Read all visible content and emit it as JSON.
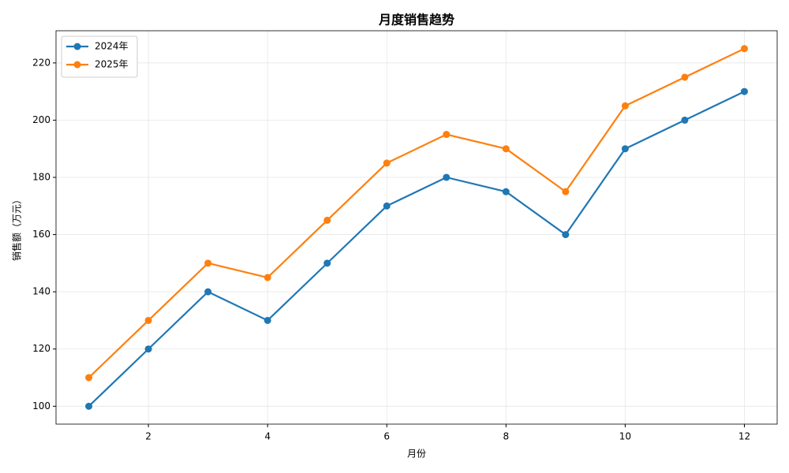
{
  "chart_data": {
    "type": "line",
    "title": "月度销售趋势",
    "x_label": "月份",
    "y_label": "销售额（万元）",
    "x": [
      1,
      2,
      3,
      4,
      5,
      6,
      7,
      8,
      9,
      10,
      11,
      12
    ],
    "series": [
      {
        "name": "2024年",
        "color": "#1f77b4",
        "values": [
          100,
          120,
          140,
          130,
          150,
          170,
          180,
          175,
          160,
          190,
          200,
          210
        ]
      },
      {
        "name": "2025年",
        "color": "#ff7f0e",
        "values": [
          110,
          130,
          150,
          145,
          165,
          185,
          195,
          190,
          175,
          205,
          215,
          225
        ]
      }
    ],
    "xlim": [
      0.45,
      12.55
    ],
    "xticks": [
      2,
      4,
      6,
      8,
      10,
      12
    ],
    "ylim": [
      93.75,
      231.25
    ],
    "yticks": [
      100,
      120,
      140,
      160,
      180,
      200,
      220
    ],
    "grid": true,
    "legend": "upper-left"
  }
}
